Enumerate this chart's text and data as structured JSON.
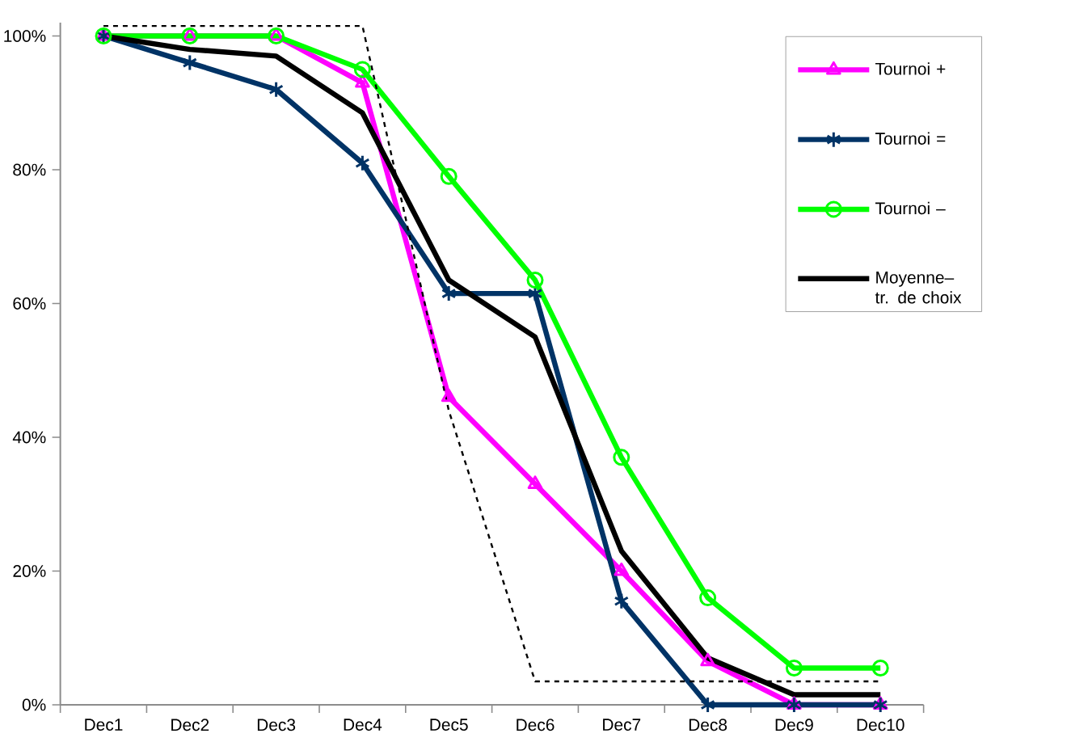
{
  "chart_data": {
    "type": "line",
    "categories": [
      "Dec1",
      "Dec2",
      "Dec3",
      "Dec4",
      "Dec5",
      "Dec6",
      "Dec7",
      "Dec8",
      "Dec9",
      "Dec10"
    ],
    "series": [
      {
        "name": "Tournoi +",
        "color": "#ff00ff",
        "marker": "triangle",
        "values": [
          100,
          100,
          100,
          93,
          46,
          33,
          20,
          6.5,
          0,
          0
        ]
      },
      {
        "name": "Tournoi =",
        "color": "#003366",
        "marker": "cross",
        "values": [
          100,
          96,
          92,
          81,
          61.5,
          61.5,
          15.5,
          0,
          0,
          0
        ]
      },
      {
        "name": "Tournoi –",
        "color": "#00ff00",
        "marker": "circle",
        "values": [
          100,
          100,
          100,
          95,
          79,
          63.5,
          37,
          16,
          5.5,
          5.5
        ]
      },
      {
        "name": "Moyenne– tr. de choix",
        "color": "#000000",
        "marker": "none",
        "values": [
          100,
          98,
          97,
          88.5,
          63.5,
          55,
          23,
          7,
          1.5,
          1.5
        ]
      },
      {
        "color": "#000000",
        "marker": "none",
        "line_style": "dashed",
        "values": [
          101.5,
          101.5,
          101.5,
          101.5,
          44,
          3.5,
          3.5,
          3.5,
          3.5,
          3.5
        ]
      }
    ],
    "ylim": [
      0,
      102
    ],
    "yticks": [
      {
        "value": 0,
        "label": "0%"
      },
      {
        "value": 20,
        "label": "20%"
      },
      {
        "value": 40,
        "label": "40%"
      },
      {
        "value": 60,
        "label": "60%"
      },
      {
        "value": 80,
        "label": "80%"
      },
      {
        "value": 100,
        "label": "100%"
      }
    ],
    "grid": false,
    "legend": "top right"
  }
}
